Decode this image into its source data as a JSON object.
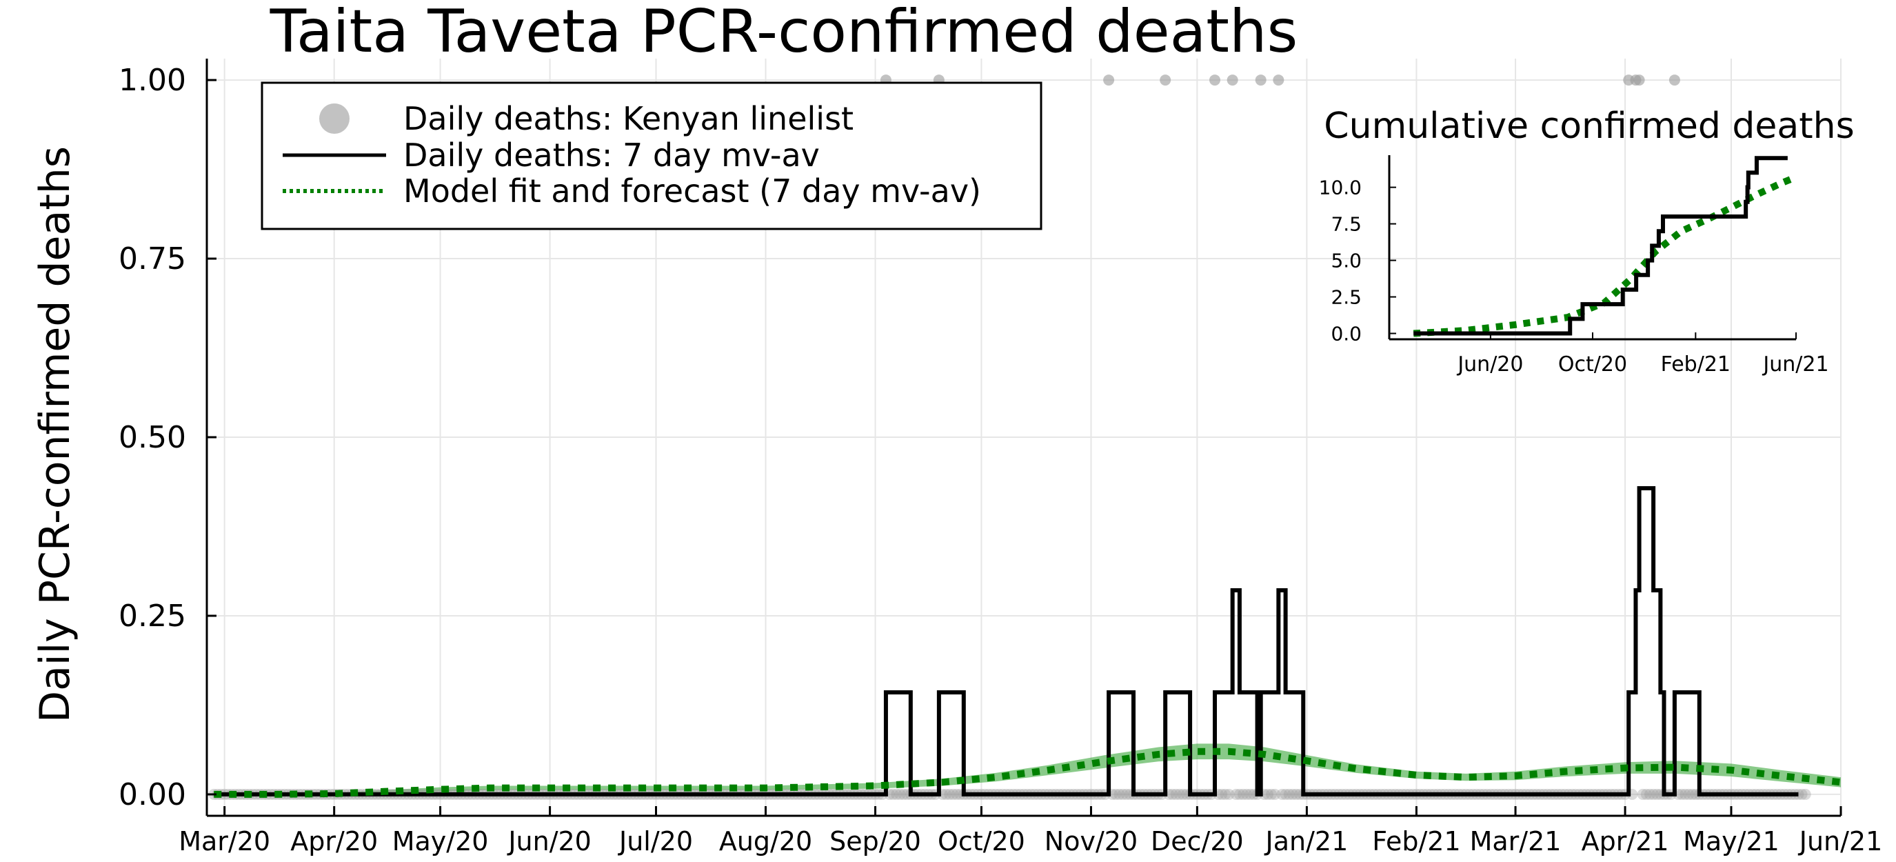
{
  "chart_data": [
    {
      "type": "line",
      "title": "Taita Taveta PCR-confirmed deaths",
      "ylabel": "Daily PCR-confirmed deaths",
      "xlabel": "",
      "x_type": "date",
      "xlim": [
        "2020-02-25",
        "2021-06-01"
      ],
      "ylim": [
        -0.03,
        1.03
      ],
      "x_tick_labels": [
        "Mar/20",
        "Apr/20",
        "May/20",
        "Jun/20",
        "Jul/20",
        "Aug/20",
        "Sep/20",
        "Oct/20",
        "Nov/20",
        "Dec/20",
        "Jan/21",
        "Feb/21",
        "Mar/21",
        "Apr/21",
        "May/21",
        "Jun/21"
      ],
      "x_tick_dates": [
        "2020-03-01",
        "2020-04-01",
        "2020-05-01",
        "2020-06-01",
        "2020-07-01",
        "2020-08-01",
        "2020-09-01",
        "2020-10-01",
        "2020-11-01",
        "2020-12-01",
        "2021-01-01",
        "2021-02-01",
        "2021-03-01",
        "2021-04-01",
        "2021-05-01",
        "2021-06-01"
      ],
      "y_ticks": [
        0,
        0.25,
        0.5,
        0.75,
        1.0
      ],
      "y_tick_labels": [
        "0.00",
        "0.25",
        "0.50",
        "0.75",
        "1.00"
      ],
      "grid": true,
      "legend": {
        "position": "top-left",
        "entries": [
          {
            "label": "Daily deaths: Kenyan linelist",
            "style": "marker",
            "color": "#999999"
          },
          {
            "label": "Daily deaths: 7 day mv-av",
            "style": "solid",
            "color": "#000000"
          },
          {
            "label": "Model fit and forecast (7 day mv-av)",
            "style": "dotted",
            "color": "#008000"
          }
        ]
      },
      "series": [
        {
          "legend_label": "Daily deaths: Kenyan linelist",
          "kind": "scatter",
          "color": "#999999",
          "points_at_one": [
            "2020-09-04",
            "2020-09-19",
            "2020-11-06",
            "2020-11-22",
            "2020-12-06",
            "2020-12-11",
            "2020-12-19",
            "2020-12-24",
            "2021-04-02",
            "2021-04-04",
            "2021-04-05",
            "2021-04-15"
          ],
          "zero_range": [
            "2020-02-27",
            "2021-05-22"
          ],
          "value_elsewhere": 0
        },
        {
          "legend_label": "Daily deaths: 7 day mv-av",
          "kind": "step",
          "color": "#000000",
          "x_range": [
            "2020-02-27",
            "2021-05-20"
          ],
          "baseline": 0,
          "windows_1_7": [
            [
              "2020-09-04",
              "2020-09-10"
            ],
            [
              "2020-09-19",
              "2020-09-25"
            ],
            [
              "2020-11-06",
              "2020-11-12"
            ],
            [
              "2020-11-22",
              "2020-11-28"
            ],
            [
              "2020-12-06",
              "2020-12-12"
            ],
            [
              "2020-12-11",
              "2020-12-17"
            ],
            [
              "2020-12-19",
              "2020-12-25"
            ],
            [
              "2020-12-24",
              "2020-12-30"
            ],
            [
              "2021-04-02",
              "2021-04-08"
            ],
            [
              "2021-04-04",
              "2021-04-10"
            ],
            [
              "2021-04-05",
              "2021-04-11"
            ],
            [
              "2021-04-15",
              "2021-04-21"
            ]
          ]
        },
        {
          "legend_label": "Model fit and forecast (7 day mv-av)",
          "kind": "dotted",
          "color": "#008000",
          "band_color": "#3aa63a",
          "x": [
            "2020-02-27",
            "2020-03-15",
            "2020-04-01",
            "2020-04-15",
            "2020-05-01",
            "2020-05-15",
            "2020-06-01",
            "2020-07-01",
            "2020-08-01",
            "2020-09-01",
            "2020-09-20",
            "2020-10-05",
            "2020-10-20",
            "2020-11-05",
            "2020-11-20",
            "2020-12-01",
            "2020-12-10",
            "2020-12-20",
            "2021-01-01",
            "2021-01-15",
            "2021-02-01",
            "2021-02-15",
            "2021-03-01",
            "2021-03-15",
            "2021-04-01",
            "2021-04-15",
            "2021-05-01",
            "2021-05-15",
            "2021-06-01"
          ],
          "y": [
            0.0,
            0.0,
            0.001,
            0.004,
            0.007,
            0.009,
            0.009,
            0.009,
            0.009,
            0.012,
            0.017,
            0.024,
            0.034,
            0.046,
            0.056,
            0.06,
            0.06,
            0.056,
            0.047,
            0.036,
            0.027,
            0.024,
            0.026,
            0.032,
            0.037,
            0.038,
            0.034,
            0.026,
            0.017
          ],
          "band_half_width": [
            0.0,
            0.0,
            0.001,
            0.002,
            0.003,
            0.003,
            0.003,
            0.003,
            0.003,
            0.004,
            0.005,
            0.006,
            0.007,
            0.009,
            0.01,
            0.011,
            0.011,
            0.01,
            0.008,
            0.006,
            0.005,
            0.005,
            0.006,
            0.007,
            0.008,
            0.009,
            0.009,
            0.008,
            0.007
          ]
        }
      ]
    },
    {
      "type": "line",
      "title": "Cumulative confirmed deaths",
      "xlabel": "",
      "ylabel": "",
      "x_type": "date",
      "xlim": [
        "2020-02-01",
        "2021-06-01"
      ],
      "ylim": [
        -0.4,
        12.2
      ],
      "x_tick_labels": [
        "Jun/20",
        "Oct/20",
        "Feb/21",
        "Jun/21"
      ],
      "x_tick_dates": [
        "2020-06-01",
        "2020-10-01",
        "2021-02-01",
        "2021-06-01"
      ],
      "y_ticks": [
        0,
        2.5,
        5,
        7.5,
        10
      ],
      "y_tick_labels": [
        "0.0",
        "2.5",
        "5.0",
        "7.5",
        "10.0"
      ],
      "grid": false,
      "series": [
        {
          "kind": "step",
          "color": "#000000",
          "x_range": [
            "2020-03-01",
            "2021-05-22"
          ],
          "increment_dates": [
            "2020-09-04",
            "2020-09-19",
            "2020-11-06",
            "2020-11-22",
            "2020-12-06",
            "2020-12-11",
            "2020-12-19",
            "2020-12-24",
            "2021-04-02",
            "2021-04-04",
            "2021-04-05",
            "2021-04-15"
          ]
        },
        {
          "kind": "dotted",
          "color": "#008000",
          "x": [
            "2020-03-01",
            "2020-05-01",
            "2020-07-01",
            "2020-09-01",
            "2020-10-15",
            "2020-11-15",
            "2020-12-15",
            "2021-01-15",
            "2021-02-15",
            "2021-03-15",
            "2021-04-15",
            "2021-05-15",
            "2021-06-01"
          ],
          "y": [
            0.0,
            0.2,
            0.6,
            1.1,
            2.1,
            3.7,
            5.6,
            7.0,
            7.8,
            8.6,
            9.5,
            10.3,
            10.7
          ]
        }
      ]
    }
  ]
}
